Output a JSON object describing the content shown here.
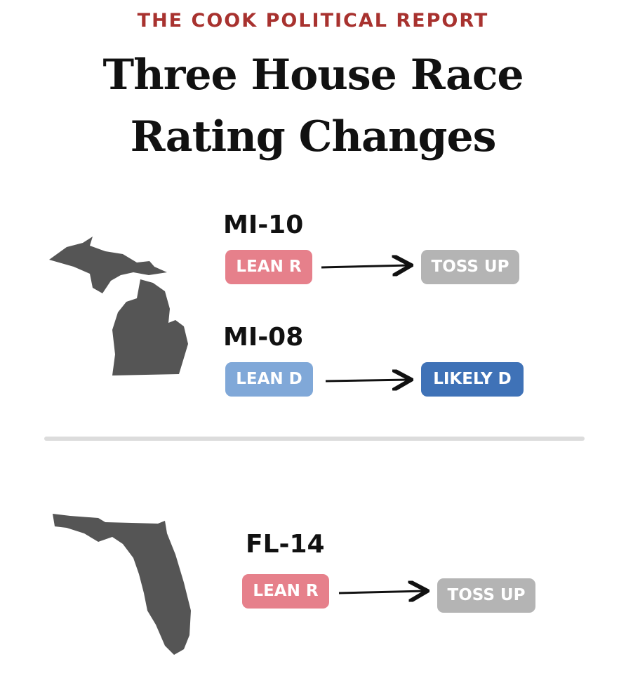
{
  "header": {
    "source": "THE COOK POLITICAL REPORT",
    "title_lines": [
      "Three House Race",
      "Rating Changes"
    ]
  },
  "races": [
    {
      "district": "MI-10",
      "from": "LEAN R",
      "to": "TOSS UP"
    },
    {
      "district": "MI-08",
      "from": "LEAN D",
      "to": "LIKELY D"
    },
    {
      "district": "FL-14",
      "from": "LEAN R",
      "to": "TOSS UP"
    }
  ]
}
